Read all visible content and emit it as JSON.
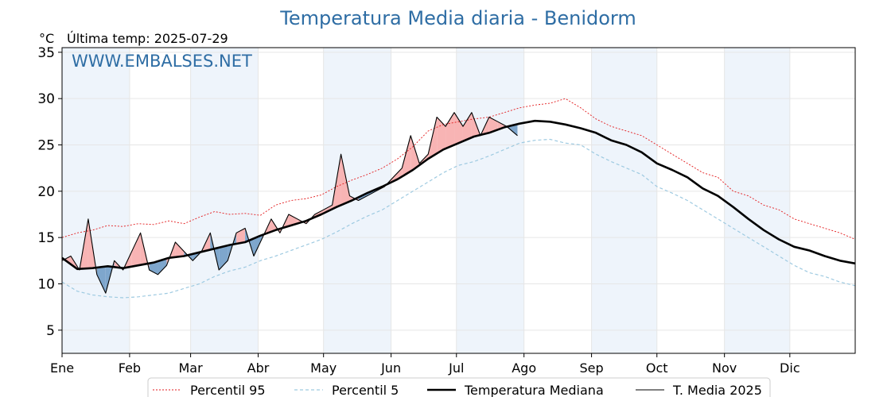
{
  "title": "Temperatura Media diaria - Benidorm",
  "unit_label": "°C",
  "last_temp_label": "Última temp: 2025-07-29",
  "watermark": "WWW.EMBALSES.NET",
  "colors": {
    "title": "#2e6da4",
    "p95": "#e31a1c",
    "p5": "#9ecae1",
    "median": "#000000",
    "current": "#000000",
    "above_fill": "#f8b4b4",
    "below_fill": "#7ea6cc",
    "month_shade": "#eef4fb"
  },
  "legend": [
    {
      "key": "p95",
      "label": "Percentil 95"
    },
    {
      "key": "p5",
      "label": "Percentil 5"
    },
    {
      "key": "median",
      "label": "Temperatura Mediana"
    },
    {
      "key": "current",
      "label": "T. Media 2025"
    }
  ],
  "chart_data": {
    "type": "line",
    "x_unit": "day_of_year",
    "xlim": [
      1,
      365
    ],
    "ylim": [
      2.5,
      35.5
    ],
    "yticks": [
      5,
      10,
      15,
      20,
      25,
      30,
      35
    ],
    "ytick_labels": [
      "5",
      "10",
      "15",
      "20",
      "25",
      "30",
      "35"
    ],
    "months": [
      {
        "label": "Ene",
        "start_day": 1
      },
      {
        "label": "Feb",
        "start_day": 32
      },
      {
        "label": "Mar",
        "start_day": 60
      },
      {
        "label": "Abr",
        "start_day": 91
      },
      {
        "label": "May",
        "start_day": 121
      },
      {
        "label": "Jun",
        "start_day": 152
      },
      {
        "label": "Jul",
        "start_day": 182
      },
      {
        "label": "Ago",
        "start_day": 213
      },
      {
        "label": "Sep",
        "start_day": 244
      },
      {
        "label": "Oct",
        "start_day": 274
      },
      {
        "label": "Nov",
        "start_day": 305
      },
      {
        "label": "Dic",
        "start_day": 335
      }
    ],
    "grid": true,
    "legend_position": "bottom",
    "series": [
      {
        "name": "Percentil 95",
        "key": "p95",
        "style": "dotted",
        "x": [
          1,
          8,
          15,
          22,
          29,
          36,
          43,
          50,
          57,
          64,
          71,
          78,
          85,
          92,
          99,
          106,
          113,
          120,
          127,
          134,
          141,
          148,
          155,
          162,
          169,
          176,
          183,
          190,
          197,
          204,
          211,
          218,
          225,
          232,
          239,
          246,
          253,
          260,
          267,
          274,
          281,
          288,
          295,
          302,
          309,
          316,
          323,
          330,
          337,
          344,
          351,
          358,
          365
        ],
        "y": [
          15.0,
          15.5,
          15.8,
          16.3,
          16.2,
          16.5,
          16.4,
          16.8,
          16.5,
          17.2,
          17.8,
          17.5,
          17.6,
          17.4,
          18.5,
          19.0,
          19.2,
          19.6,
          20.5,
          21.2,
          21.8,
          22.5,
          23.5,
          24.8,
          26.5,
          27.2,
          27.5,
          27.8,
          28.0,
          28.5,
          29.0,
          29.3,
          29.5,
          30.0,
          29.0,
          27.8,
          27.0,
          26.5,
          26.0,
          25.0,
          24.0,
          23.0,
          22.0,
          21.5,
          20.0,
          19.5,
          18.5,
          18.0,
          17.0,
          16.5,
          16.0,
          15.5,
          14.8
        ]
      },
      {
        "name": "Percentil 5",
        "key": "p5",
        "style": "dashed",
        "x": [
          1,
          8,
          15,
          22,
          29,
          36,
          43,
          50,
          57,
          64,
          71,
          78,
          85,
          92,
          99,
          106,
          113,
          120,
          127,
          134,
          141,
          148,
          155,
          162,
          169,
          176,
          183,
          190,
          197,
          204,
          211,
          218,
          225,
          232,
          239,
          246,
          253,
          260,
          267,
          274,
          281,
          288,
          295,
          302,
          309,
          316,
          323,
          330,
          337,
          344,
          351,
          358,
          365
        ],
        "y": [
          10.2,
          9.2,
          8.8,
          8.6,
          8.5,
          8.6,
          8.8,
          9.0,
          9.5,
          10.0,
          10.8,
          11.4,
          11.8,
          12.5,
          13.0,
          13.6,
          14.2,
          14.8,
          15.6,
          16.5,
          17.3,
          18.0,
          19.0,
          20.0,
          21.0,
          22.0,
          22.8,
          23.2,
          23.8,
          24.5,
          25.2,
          25.5,
          25.6,
          25.2,
          25.0,
          24.0,
          23.2,
          22.5,
          21.8,
          20.5,
          19.8,
          19.0,
          18.0,
          17.0,
          16.0,
          15.0,
          14.0,
          13.0,
          12.0,
          11.2,
          10.8,
          10.2,
          9.8
        ]
      },
      {
        "name": "Temperatura Mediana",
        "key": "median",
        "style": "solid-thick",
        "x": [
          1,
          8,
          15,
          22,
          29,
          36,
          43,
          50,
          57,
          64,
          71,
          78,
          85,
          92,
          99,
          106,
          113,
          120,
          127,
          134,
          141,
          148,
          155,
          162,
          169,
          176,
          183,
          190,
          197,
          204,
          211,
          218,
          225,
          232,
          239,
          246,
          253,
          260,
          267,
          274,
          281,
          288,
          295,
          302,
          309,
          316,
          323,
          330,
          337,
          344,
          351,
          358,
          365
        ],
        "y": [
          12.8,
          11.6,
          11.7,
          11.9,
          11.7,
          12.0,
          12.3,
          12.8,
          13.0,
          13.4,
          13.8,
          14.2,
          14.5,
          15.2,
          15.8,
          16.3,
          16.8,
          17.5,
          18.3,
          19.0,
          19.8,
          20.5,
          21.3,
          22.3,
          23.5,
          24.5,
          25.2,
          25.9,
          26.3,
          26.9,
          27.3,
          27.6,
          27.5,
          27.2,
          26.8,
          26.3,
          25.5,
          25.0,
          24.2,
          23.0,
          22.3,
          21.5,
          20.3,
          19.5,
          18.3,
          17.0,
          15.8,
          14.8,
          14.0,
          13.6,
          13.0,
          12.5,
          12.2
        ]
      },
      {
        "name": "T. Media 2025",
        "key": "current",
        "style": "solid-thin",
        "x": [
          1,
          5,
          9,
          13,
          17,
          21,
          25,
          29,
          33,
          37,
          41,
          45,
          49,
          53,
          57,
          61,
          65,
          69,
          73,
          77,
          81,
          85,
          89,
          93,
          97,
          101,
          105,
          109,
          113,
          117,
          121,
          125,
          129,
          133,
          137,
          141,
          145,
          149,
          153,
          157,
          161,
          165,
          169,
          173,
          177,
          181,
          185,
          189,
          193,
          197,
          201,
          205,
          210
        ],
        "y": [
          12.5,
          13.0,
          11.5,
          17.0,
          11.0,
          9.0,
          12.5,
          11.5,
          13.5,
          15.5,
          11.5,
          11.0,
          12.0,
          14.5,
          13.5,
          12.5,
          13.5,
          15.5,
          11.5,
          12.5,
          15.5,
          16.0,
          13.0,
          15.0,
          17.0,
          15.5,
          17.5,
          17.0,
          16.5,
          17.5,
          18.0,
          18.5,
          24.0,
          19.5,
          19.0,
          19.5,
          20.0,
          20.5,
          21.5,
          22.5,
          26.0,
          23.0,
          24.0,
          28.0,
          27.0,
          28.5,
          27.0,
          28.5,
          26.0,
          28.0,
          27.5,
          27.0,
          26.0
        ]
      }
    ]
  }
}
